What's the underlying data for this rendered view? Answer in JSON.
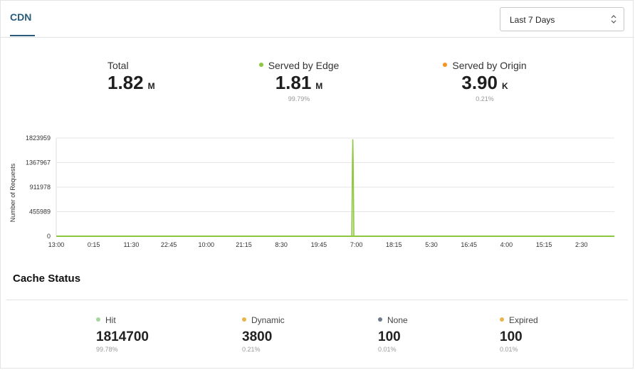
{
  "header": {
    "tab_label": "CDN",
    "range_select": {
      "value": "Last 7 Days"
    }
  },
  "summary": {
    "total": {
      "title": "Total",
      "value": "1.82",
      "unit": "M"
    },
    "edge": {
      "title": "Served by Edge",
      "value": "1.81",
      "unit": "M",
      "percent": "99.79%",
      "color": "#8dc63f"
    },
    "origin": {
      "title": "Served by Origin",
      "value": "3.90",
      "unit": "K",
      "percent": "0.21%",
      "color": "#f7941d"
    }
  },
  "chart_data": {
    "type": "area",
    "ylabel": "Number of Requests",
    "y_ticks": [
      "0",
      "455989",
      "911978",
      "1367967",
      "1823959"
    ],
    "ylim": [
      0,
      1823959
    ],
    "x_tick_labels": [
      "13:00",
      "0:15",
      "11:30",
      "22:45",
      "10:00",
      "21:15",
      "8:30",
      "19:45",
      "7:00",
      "18:15",
      "5:30",
      "16:45",
      "4:00",
      "15:15",
      "2:30"
    ],
    "series": [
      {
        "color": "#8dc63f",
        "points": [
          {
            "x": "13:00",
            "y": 0
          },
          {
            "x": "19:45",
            "y": 0
          },
          {
            "x": "7:00",
            "y": 1800000
          },
          {
            "x": "18:15",
            "y": 0
          },
          {
            "x": "2:30",
            "y": 0
          }
        ]
      }
    ],
    "grid": true
  },
  "cache_status": {
    "title": "Cache Status",
    "items": [
      {
        "label": "Hit",
        "value": "1814700",
        "percent": "99.78%",
        "color": "#a8d5a0"
      },
      {
        "label": "Dynamic",
        "value": "3800",
        "percent": "0.21%",
        "color": "#e9b44c"
      },
      {
        "label": "None",
        "value": "100",
        "percent": "0.01%",
        "color": "#6c7a89"
      },
      {
        "label": "Expired",
        "value": "100",
        "percent": "0.01%",
        "color": "#e9b44c"
      }
    ]
  }
}
